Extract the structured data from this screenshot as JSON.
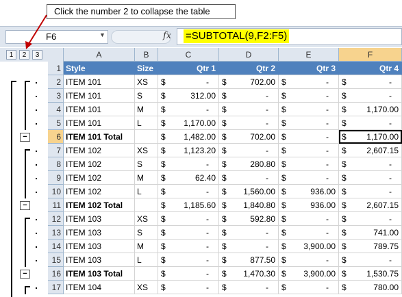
{
  "callout": "Click the number 2 to collapse the table",
  "name_box": "F6",
  "fx_symbol": "fx",
  "formula": "=SUBTOTAL(9,F2:F5)",
  "outline_levels": [
    "1",
    "2",
    "3"
  ],
  "columns": [
    "A",
    "B",
    "C",
    "D",
    "E",
    "F"
  ],
  "selected_cell": "F6",
  "rows": [
    {
      "n": "1",
      "a": "Style",
      "b": "Size",
      "c": "Qtr 1",
      "d": "Qtr 2",
      "e": "Qtr 3",
      "f": "Qtr 4",
      "header": true
    },
    {
      "n": "2",
      "a": "ITEM 101",
      "b": "XS",
      "c": "-",
      "d": "702.00",
      "e": "-",
      "f": "-"
    },
    {
      "n": "3",
      "a": "ITEM 101",
      "b": "S",
      "c": "312.00",
      "d": "-",
      "e": "-",
      "f": "-"
    },
    {
      "n": "4",
      "a": "ITEM 101",
      "b": "M",
      "c": "-",
      "d": "-",
      "e": "-",
      "f": "1,170.00"
    },
    {
      "n": "5",
      "a": "ITEM 101",
      "b": "L",
      "c": "1,170.00",
      "d": "-",
      "e": "-",
      "f": "-"
    },
    {
      "n": "6",
      "a": "ITEM 101 Total",
      "b": "",
      "c": "1,482.00",
      "d": "702.00",
      "e": "-",
      "f": "1,170.00",
      "total": true
    },
    {
      "n": "7",
      "a": "ITEM 102",
      "b": "XS",
      "c": "1,123.20",
      "d": "-",
      "e": "-",
      "f": "2,607.15"
    },
    {
      "n": "8",
      "a": "ITEM 102",
      "b": "S",
      "c": "-",
      "d": "280.80",
      "e": "-",
      "f": "-"
    },
    {
      "n": "9",
      "a": "ITEM 102",
      "b": "M",
      "c": "62.40",
      "d": "-",
      "e": "-",
      "f": "-"
    },
    {
      "n": "10",
      "a": "ITEM 102",
      "b": "L",
      "c": "-",
      "d": "1,560.00",
      "e": "936.00",
      "f": "-"
    },
    {
      "n": "11",
      "a": "ITEM 102 Total",
      "b": "",
      "c": "1,185.60",
      "d": "1,840.80",
      "e": "936.00",
      "f": "2,607.15",
      "total": true
    },
    {
      "n": "12",
      "a": "ITEM 103",
      "b": "XS",
      "c": "-",
      "d": "592.80",
      "e": "-",
      "f": "-"
    },
    {
      "n": "13",
      "a": "ITEM 103",
      "b": "S",
      "c": "-",
      "d": "-",
      "e": "-",
      "f": "741.00"
    },
    {
      "n": "14",
      "a": "ITEM 103",
      "b": "M",
      "c": "-",
      "d": "-",
      "e": "3,900.00",
      "f": "789.75"
    },
    {
      "n": "15",
      "a": "ITEM 103",
      "b": "L",
      "c": "-",
      "d": "877.50",
      "e": "-",
      "f": "-"
    },
    {
      "n": "16",
      "a": "ITEM 103 Total",
      "b": "",
      "c": "-",
      "d": "1,470.30",
      "e": "3,900.00",
      "f": "1,530.75",
      "total": true
    },
    {
      "n": "17",
      "a": "ITEM 104",
      "b": "XS",
      "c": "-",
      "d": "-",
      "e": "-",
      "f": "780.00"
    }
  ],
  "currency": "$",
  "outline_minus": "−",
  "colors": {
    "header_fill": "#4f81bd",
    "selection_header": "#f7d38e",
    "formula_highlight": "#ffff00",
    "arrow": "#c00000"
  }
}
